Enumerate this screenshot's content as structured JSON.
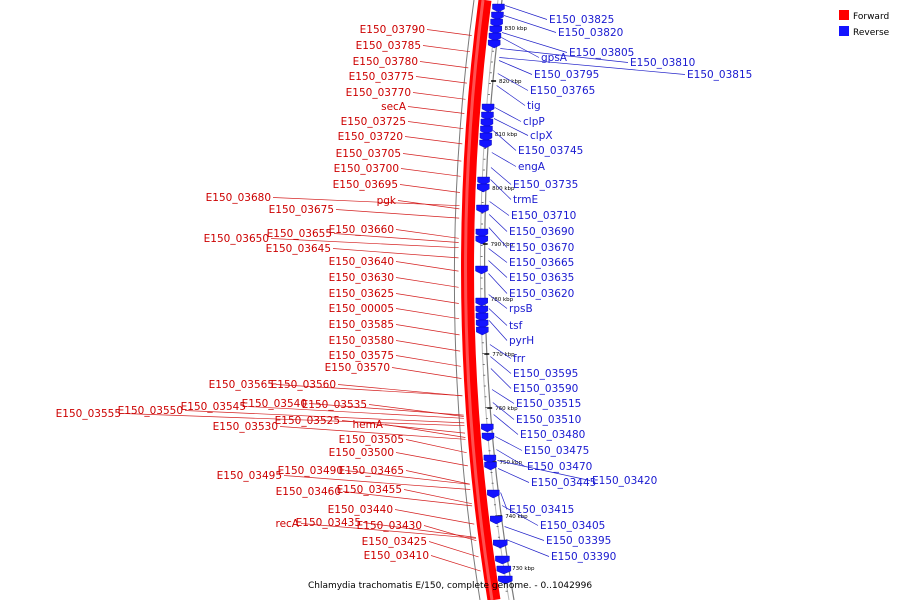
{
  "caption": "Chlamydia trachomatis E/150, complete genome. - 0..1042996",
  "colors": {
    "forward": "#ff0000",
    "reverse": "#1414ff",
    "forward_label": "#cc0000",
    "reverse_label": "#1a1ad0",
    "backbone": "#7a7a7a"
  },
  "legend": [
    {
      "label": "Forward",
      "color": "#ff0000"
    },
    {
      "label": "Reverse",
      "color": "#1414ff"
    }
  ],
  "tick_labels": [
    "830 kbp",
    "820 kbp",
    "810 kbp",
    "800 kbp",
    "790 kbp",
    "780 kbp",
    "770 kbp",
    "760 kbp",
    "750 kbp",
    "740 kbp",
    "730 kbp"
  ],
  "forward_labels": [
    "E150_03790",
    "E150_03785",
    "E150_03780",
    "E150_03775",
    "E150_03770",
    "secA",
    "E150_03725",
    "E150_03720",
    "E150_03705",
    "E150_03700",
    "E150_03695",
    "E150_03680",
    "pgk",
    "E150_03675",
    "E150_03660",
    "E150_03655",
    "E150_03650",
    "E150_03645",
    "E150_03640",
    "E150_03630",
    "E150_03625",
    "E150_00005",
    "E150_03585",
    "E150_03580",
    "E150_03575",
    "E150_03570",
    "E150_03565",
    "E150_03560",
    "E150_03540",
    "E150_03545",
    "E150_03535",
    "E150_03555",
    "E150_03550",
    "E150_03525",
    "E150_03530",
    "hemA",
    "E150_03505",
    "E150_03500",
    "E150_03465",
    "E150_03490",
    "E150_03495",
    "E150_03455",
    "E150_03460",
    "E150_03440",
    "recA",
    "E150_03435",
    "E150_03430",
    "E150_03425",
    "E150_03410"
  ],
  "reverse_labels": [
    "E150_03825",
    "E150_03820",
    "E150_03805",
    "E150_03810",
    "E150_03815",
    "gpsA",
    "E150_03795",
    "E150_03765",
    "tig",
    "clpP",
    "clpX",
    "E150_03745",
    "engA",
    "E150_03735",
    "trmE",
    "E150_03710",
    "E150_03690",
    "E150_03670",
    "E150_03665",
    "E150_03635",
    "E150_03620",
    "rpsB",
    "tsf",
    "pyrH",
    "frr",
    "E150_03595",
    "E150_03590",
    "E150_03515",
    "E150_03510",
    "E150_03480",
    "E150_03475",
    "E150_03470",
    "E150_03420",
    "E150_03445",
    "E150_03415",
    "E150_03405",
    "E150_03395",
    "E150_03390"
  ]
}
